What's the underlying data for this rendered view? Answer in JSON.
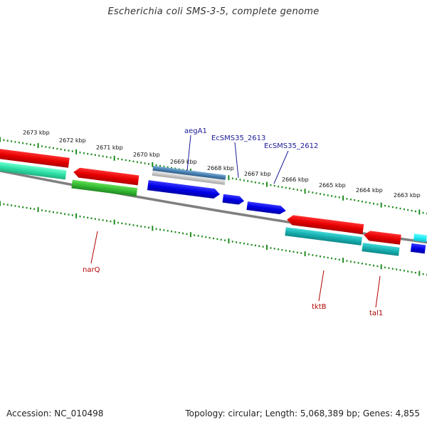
{
  "title": "Escherichia coli SMS-3-5, complete genome",
  "footer": {
    "accession": "Accession: NC_010498",
    "topology": "Topology: circular; Length: 5,068,389 bp; Genes: 4,855"
  },
  "colors": {
    "backbone": "#808080",
    "scale_dots": "#1e8c1e",
    "forward_cds": "#0000ee",
    "reverse_cds": "#ee0000",
    "cog_cyan": "#20b8b8",
    "cog_green": "#33bb33",
    "cog_mint": "#33e0a8",
    "cog_steel": "#4a7fb0",
    "label_blue": "#1a1a99",
    "label_red": "#b30000"
  },
  "scale_labels": [
    {
      "text": "2673 kbp"
    },
    {
      "text": "2672 kbp"
    },
    {
      "text": "2671 kbp"
    },
    {
      "text": "2670 kbp"
    },
    {
      "text": "2669 kbp"
    },
    {
      "text": "2668 kbp"
    },
    {
      "text": "2667 kbp"
    },
    {
      "text": "2666 kbp"
    },
    {
      "text": "2665 kbp"
    },
    {
      "text": "2664 kbp"
    },
    {
      "text": "2663 kbp"
    }
  ],
  "gene_labels_top": [
    {
      "text": "aegA1"
    },
    {
      "text": "EcSMS35_2613"
    },
    {
      "text": "EcSMS35_2612"
    }
  ],
  "gene_labels_bottom": [
    {
      "text": "narQ"
    },
    {
      "text": "tktB"
    },
    {
      "text": "tal1"
    }
  ]
}
